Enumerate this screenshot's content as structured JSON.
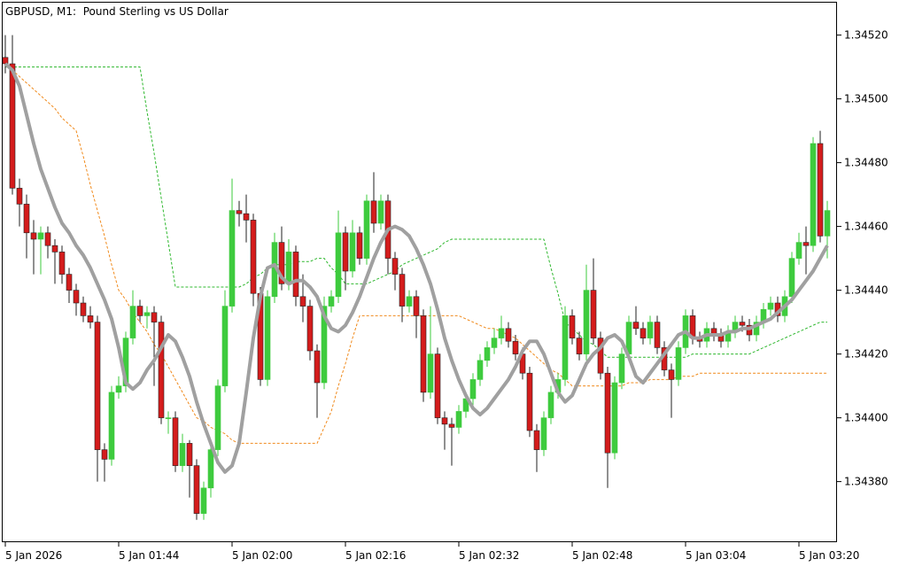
{
  "chart_data": {
    "type": "candlestick",
    "title": "GBPUSD, M1:  Pound Sterling vs US Dollar",
    "up_color": "#3ecb3e",
    "down_color": "#d41c1c",
    "categories": [
      "5 Jan 2026",
      null,
      null,
      null,
      null,
      null,
      null,
      null,
      null,
      null,
      null,
      null,
      null,
      null,
      null,
      null,
      "5 Jan 01:44",
      null,
      null,
      null,
      null,
      null,
      null,
      null,
      null,
      null,
      null,
      null,
      null,
      null,
      null,
      null,
      "5 Jan 02:00",
      null,
      null,
      null,
      null,
      null,
      null,
      null,
      null,
      null,
      null,
      null,
      null,
      null,
      null,
      null,
      "5 Jan 02:16",
      null,
      null,
      null,
      null,
      null,
      null,
      null,
      null,
      null,
      null,
      null,
      null,
      null,
      null,
      null,
      "5 Jan 02:32",
      null,
      null,
      null,
      null,
      null,
      null,
      null,
      null,
      null,
      null,
      null,
      null,
      null,
      null,
      null,
      "5 Jan 02:48",
      null,
      null,
      null,
      null,
      null,
      null,
      null,
      null,
      null,
      null,
      null,
      null,
      null,
      null,
      null,
      "5 Jan 03:04",
      null,
      null,
      null,
      null,
      null,
      null,
      null,
      null,
      null,
      null,
      null,
      null,
      null,
      null,
      null,
      "5 Jan 03:20",
      null,
      null,
      null,
      null
    ],
    "open": [
      1.34513,
      1.34511,
      1.34472,
      1.34467,
      1.34458,
      1.34456,
      1.34458,
      1.34454,
      1.34452,
      1.34445,
      1.3444,
      1.34436,
      1.34432,
      1.3443,
      1.3439,
      1.34387,
      1.34408,
      1.3441,
      1.34425,
      1.34435,
      1.34432,
      1.34433,
      1.3443,
      1.344,
      1.344,
      1.34385,
      1.34392,
      1.34385,
      1.3437,
      1.34378,
      1.3439,
      1.3441,
      1.34435,
      1.34465,
      1.34464,
      1.34462,
      1.34439,
      1.34412,
      1.34438,
      1.34455,
      1.34442,
      1.34452,
      1.34438,
      1.34435,
      1.34421,
      1.34411,
      1.34435,
      1.34438,
      1.34458,
      1.34446,
      1.34458,
      1.3445,
      1.34468,
      1.34461,
      1.34468,
      1.3445,
      1.34445,
      1.34435,
      1.34438,
      1.34432,
      1.34408,
      1.3442,
      1.344,
      1.34398,
      1.34397,
      1.34402,
      1.34406,
      1.34412,
      1.34418,
      1.34422,
      1.34425,
      1.34428,
      1.34424,
      1.3442,
      1.34414,
      1.34396,
      1.3439,
      1.344,
      1.34408,
      1.34412,
      1.34432,
      1.34425,
      1.3442,
      1.3444,
      1.34425,
      1.34414,
      1.34389,
      1.34411,
      1.3442,
      1.3443,
      1.34428,
      1.34425,
      1.3443,
      1.34422,
      1.34415,
      1.34412,
      1.34422,
      1.34432,
      1.34425,
      1.34424,
      1.34428,
      1.34426,
      1.34424,
      1.34427,
      1.3443,
      1.34429,
      1.34426,
      1.3443,
      1.34434,
      1.34436,
      1.34432,
      1.34438,
      1.3445,
      1.34455,
      1.34454,
      1.34486,
      1.34457
    ],
    "high": [
      1.3452,
      1.3452,
      1.34475,
      1.3447,
      1.34462,
      1.3446,
      1.3446,
      1.34456,
      1.34454,
      1.34447,
      1.34442,
      1.34438,
      1.34435,
      1.34432,
      1.34392,
      1.3441,
      1.34413,
      1.34427,
      1.3444,
      1.34437,
      1.34435,
      1.34435,
      1.34432,
      1.34402,
      1.34402,
      1.34395,
      1.34393,
      1.34387,
      1.3438,
      1.34392,
      1.34412,
      1.3444,
      1.34475,
      1.34468,
      1.3447,
      1.34464,
      1.34441,
      1.3444,
      1.34458,
      1.3446,
      1.34456,
      1.34454,
      1.34445,
      1.34437,
      1.34423,
      1.34438,
      1.3444,
      1.34465,
      1.3446,
      1.34462,
      1.3446,
      1.3447,
      1.34477,
      1.3447,
      1.3447,
      1.34452,
      1.34447,
      1.3444,
      1.3444,
      1.34434,
      1.34435,
      1.34422,
      1.34402,
      1.344,
      1.34404,
      1.34408,
      1.34414,
      1.3442,
      1.34424,
      1.34428,
      1.34432,
      1.3443,
      1.34426,
      1.34422,
      1.34416,
      1.34398,
      1.34402,
      1.3441,
      1.34414,
      1.34435,
      1.34434,
      1.34427,
      1.34448,
      1.3445,
      1.34427,
      1.34416,
      1.34413,
      1.34422,
      1.34432,
      1.34435,
      1.3443,
      1.34432,
      1.34432,
      1.34424,
      1.34417,
      1.34424,
      1.34434,
      1.34434,
      1.34427,
      1.3443,
      1.3443,
      1.34428,
      1.34429,
      1.34432,
      1.34432,
      1.34431,
      1.34432,
      1.34436,
      1.34438,
      1.34438,
      1.3444,
      1.34452,
      1.34458,
      1.3446,
      1.34488,
      1.3449,
      1.34468
    ],
    "low": [
      1.34508,
      1.3447,
      1.3446,
      1.3445,
      1.34445,
      1.34445,
      1.3445,
      1.34442,
      1.34442,
      1.34436,
      1.34432,
      1.3443,
      1.34428,
      1.3438,
      1.3438,
      1.34385,
      1.34406,
      1.34408,
      1.34423,
      1.3443,
      1.34428,
      1.3441,
      1.34398,
      1.34395,
      1.34383,
      1.34383,
      1.34375,
      1.34368,
      1.34368,
      1.34375,
      1.34388,
      1.34408,
      1.34433,
      1.3446,
      1.34455,
      1.34435,
      1.3441,
      1.3441,
      1.34436,
      1.3444,
      1.3444,
      1.34435,
      1.3443,
      1.34418,
      1.344,
      1.34409,
      1.34433,
      1.34436,
      1.3444,
      1.34444,
      1.34448,
      1.34448,
      1.34458,
      1.34459,
      1.34445,
      1.3444,
      1.3443,
      1.34433,
      1.34425,
      1.34405,
      1.34406,
      1.34398,
      1.3439,
      1.34385,
      1.34395,
      1.344,
      1.34404,
      1.3441,
      1.34416,
      1.3442,
      1.34423,
      1.34422,
      1.34418,
      1.34412,
      1.34394,
      1.34383,
      1.34388,
      1.34398,
      1.34406,
      1.3441,
      1.34423,
      1.34418,
      1.34418,
      1.34423,
      1.34412,
      1.34378,
      1.34387,
      1.34409,
      1.34418,
      1.34426,
      1.34423,
      1.34423,
      1.3442,
      1.34413,
      1.344,
      1.3441,
      1.3442,
      1.34423,
      1.34422,
      1.34422,
      1.34424,
      1.34422,
      1.34422,
      1.34425,
      1.34427,
      1.34424,
      1.34424,
      1.34428,
      1.34432,
      1.3443,
      1.3443,
      1.34436,
      1.34448,
      1.34445,
      1.34452,
      1.34455,
      1.3445
    ],
    "close": [
      1.34511,
      1.34472,
      1.34467,
      1.34458,
      1.34456,
      1.34458,
      1.34454,
      1.34452,
      1.34445,
      1.3444,
      1.34436,
      1.34432,
      1.3443,
      1.3439,
      1.34387,
      1.34408,
      1.3441,
      1.34425,
      1.34435,
      1.34432,
      1.34433,
      1.3443,
      1.344,
      1.344,
      1.34385,
      1.34392,
      1.34385,
      1.3437,
      1.34378,
      1.3439,
      1.3441,
      1.34435,
      1.34465,
      1.34464,
      1.34462,
      1.34439,
      1.34412,
      1.34438,
      1.34455,
      1.34442,
      1.34452,
      1.34438,
      1.34435,
      1.34421,
      1.34411,
      1.34435,
      1.34438,
      1.34458,
      1.34446,
      1.34458,
      1.3445,
      1.34468,
      1.34461,
      1.34468,
      1.3445,
      1.34445,
      1.34435,
      1.34438,
      1.34432,
      1.34408,
      1.3442,
      1.344,
      1.34398,
      1.34397,
      1.34402,
      1.34406,
      1.34412,
      1.34418,
      1.34422,
      1.34425,
      1.34428,
      1.34424,
      1.3442,
      1.34414,
      1.34396,
      1.3439,
      1.344,
      1.34408,
      1.34412,
      1.34432,
      1.34425,
      1.3442,
      1.3444,
      1.34425,
      1.34414,
      1.34389,
      1.34411,
      1.3442,
      1.3443,
      1.34428,
      1.34425,
      1.3443,
      1.34422,
      1.34415,
      1.34412,
      1.34422,
      1.34432,
      1.34425,
      1.34424,
      1.34428,
      1.34426,
      1.34424,
      1.34427,
      1.3443,
      1.34429,
      1.34426,
      1.3443,
      1.34434,
      1.34436,
      1.34432,
      1.34438,
      1.3445,
      1.34455,
      1.34454,
      1.34486,
      1.34457,
      1.34465
    ],
    "lines": [
      {
        "color": "#a0a0a0",
        "values": [
          1.34511,
          1.34509,
          1.34504,
          1.34495,
          1.34486,
          1.34478,
          1.34472,
          1.34466,
          1.34461,
          1.34458,
          1.34454,
          1.34451,
          1.34447,
          1.34442,
          1.34437,
          1.34431,
          1.34422,
          1.34411,
          1.34409,
          1.34411,
          1.34415,
          1.34418,
          1.34422,
          1.34426,
          1.34424,
          1.34419,
          1.34413,
          1.34405,
          1.34398,
          1.34392,
          1.34386,
          1.34383,
          1.34385,
          1.34392,
          1.34408,
          1.34425,
          1.34438,
          1.34447,
          1.34448,
          1.34444,
          1.34442,
          1.34443,
          1.34443,
          1.34441,
          1.34438,
          1.34432,
          1.34428,
          1.34427,
          1.34429,
          1.34433,
          1.34438,
          1.34444,
          1.3445,
          1.34455,
          1.34459,
          1.3446,
          1.34459,
          1.34457,
          1.34453,
          1.34448,
          1.34442,
          1.34434,
          1.34425,
          1.34418,
          1.34412,
          1.34407,
          1.34403,
          1.34401,
          1.34403,
          1.34406,
          1.34409,
          1.34412,
          1.34416,
          1.34421,
          1.34424,
          1.34424,
          1.3442,
          1.34414,
          1.34408,
          1.34405,
          1.34407,
          1.34412,
          1.34417,
          1.3442,
          1.34422,
          1.34425,
          1.34426,
          1.34424,
          1.34419,
          1.34413,
          1.34411,
          1.34414,
          1.34417,
          1.3442,
          1.34423,
          1.34426,
          1.34427,
          1.34425,
          1.34425,
          1.34426,
          1.34426,
          1.34426,
          1.34427,
          1.34427,
          1.34428,
          1.34428,
          1.34429,
          1.3443,
          1.34431,
          1.34433,
          1.34435,
          1.34437,
          1.3444,
          1.34443,
          1.34446,
          1.3445,
          1.34454
        ]
      }
    ],
    "bands": [
      {
        "color": "#2fb82f",
        "values": [
          1.3451,
          1.3451,
          1.3451,
          1.3451,
          1.3451,
          1.3451,
          1.3451,
          1.3451,
          1.3451,
          1.3451,
          1.3451,
          1.3451,
          1.3451,
          1.3451,
          1.3451,
          1.3451,
          1.3451,
          1.3451,
          1.3451,
          1.3451,
          1.34496,
          1.34483,
          1.34469,
          1.34455,
          1.34441,
          1.34441,
          1.34441,
          1.34441,
          1.34441,
          1.34441,
          1.34441,
          1.34441,
          1.34441,
          1.34441,
          1.34442,
          1.34444,
          1.34445,
          1.34447,
          1.34448,
          1.34448,
          1.34448,
          1.34449,
          1.34449,
          1.34449,
          1.3445,
          1.3445,
          1.34447,
          1.34445,
          1.34442,
          1.34442,
          1.34442,
          1.34442,
          1.34443,
          1.34444,
          1.34445,
          1.34446,
          1.34448,
          1.34449,
          1.3445,
          1.34451,
          1.34452,
          1.34453,
          1.34455,
          1.34456,
          1.34456,
          1.34456,
          1.34456,
          1.34456,
          1.34456,
          1.34456,
          1.34456,
          1.34456,
          1.34456,
          1.34456,
          1.34456,
          1.34456,
          1.34456,
          1.34447,
          1.34439,
          1.3443,
          1.34428,
          1.34426,
          1.34424,
          1.34423,
          1.34421,
          1.34419,
          1.34419,
          1.34419,
          1.34419,
          1.34419,
          1.34419,
          1.34419,
          1.34419,
          1.34419,
          1.34419,
          1.34419,
          1.34419,
          1.3442,
          1.3442,
          1.3442,
          1.3442,
          1.3442,
          1.3442,
          1.3442,
          1.3442,
          1.3442,
          1.34421,
          1.34422,
          1.34423,
          1.34424,
          1.34425,
          1.34426,
          1.34427,
          1.34428,
          1.34429,
          1.3443,
          1.3443
        ]
      },
      {
        "color": "#f08a1c",
        "values": [
          1.34511,
          1.34509,
          1.34507,
          1.34505,
          1.34503,
          1.34501,
          1.34499,
          1.34497,
          1.34494,
          1.34492,
          1.3449,
          1.34482,
          1.34473,
          1.34465,
          1.34457,
          1.34448,
          1.3444,
          1.34437,
          1.34433,
          1.3443,
          1.34427,
          1.34423,
          1.3442,
          1.34416,
          1.34412,
          1.34408,
          1.34404,
          1.344,
          1.34399,
          1.34397,
          1.34396,
          1.34395,
          1.34393,
          1.34392,
          1.34392,
          1.34392,
          1.34392,
          1.34392,
          1.34392,
          1.34392,
          1.34392,
          1.34392,
          1.34392,
          1.34392,
          1.34392,
          1.34397,
          1.34402,
          1.3441,
          1.34417,
          1.34425,
          1.34432,
          1.34432,
          1.34432,
          1.34432,
          1.34432,
          1.34432,
          1.34432,
          1.34432,
          1.34432,
          1.34432,
          1.34432,
          1.34432,
          1.34432,
          1.34432,
          1.34432,
          1.34431,
          1.3443,
          1.34429,
          1.34428,
          1.34428,
          1.34427,
          1.34426,
          1.34425,
          1.34423,
          1.34421,
          1.34419,
          1.34417,
          1.34415,
          1.34414,
          1.34412,
          1.3441,
          1.3441,
          1.3441,
          1.3441,
          1.3441,
          1.3441,
          1.3441,
          1.3441,
          1.34411,
          1.34411,
          1.34411,
          1.34412,
          1.34412,
          1.34412,
          1.34412,
          1.34413,
          1.34413,
          1.34413,
          1.34414,
          1.34414,
          1.34414,
          1.34414,
          1.34414,
          1.34414,
          1.34414,
          1.34414,
          1.34414,
          1.34414,
          1.34414,
          1.34414,
          1.34414,
          1.34414,
          1.34414,
          1.34414,
          1.34414,
          1.34414,
          1.34414
        ]
      }
    ],
    "ylim": [
      1.34361,
      1.34531
    ],
    "yticks": [
      {
        "value": 1.3438,
        "label": "1.34380"
      },
      {
        "value": 1.344,
        "label": "1.34400"
      },
      {
        "value": 1.3442,
        "label": "1.34420"
      },
      {
        "value": 1.3444,
        "label": "1.34440"
      },
      {
        "value": 1.3446,
        "label": "1.34460"
      },
      {
        "value": 1.3448,
        "label": "1.34480"
      },
      {
        "value": 1.345,
        "label": "1.34500"
      },
      {
        "value": 1.3452,
        "label": "1.34520"
      }
    ],
    "grid": false
  }
}
